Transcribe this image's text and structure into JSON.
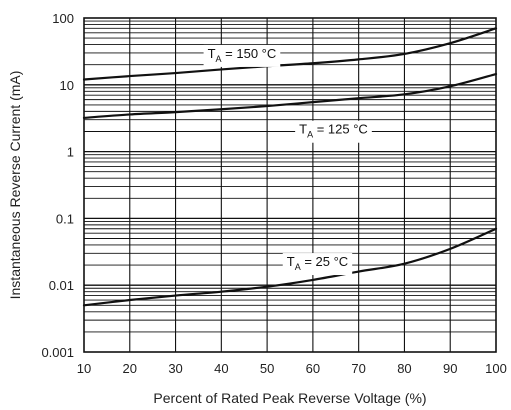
{
  "chart_data": {
    "type": "line",
    "title": "",
    "xlabel": "Percent of Rated Peak Reverse Voltage (%)",
    "ylabel": "Instantaneous Reverse Current (mA)",
    "x_scale": "linear",
    "y_scale": "log",
    "xlim": [
      10,
      100
    ],
    "ylim": [
      0.001,
      100
    ],
    "grid": true,
    "x_ticks": [
      "10",
      "20",
      "30",
      "40",
      "50",
      "60",
      "70",
      "80",
      "90",
      "100"
    ],
    "y_ticks": [
      "0.001",
      "0.01",
      "0.1",
      "1",
      "10",
      "100"
    ],
    "series": [
      {
        "name": "TA = 150 °C",
        "label_main": "T",
        "label_sub": "A",
        "label_rest": " = 150 °C",
        "x": [
          10,
          20,
          30,
          40,
          50,
          60,
          70,
          80,
          90,
          100
        ],
        "y": [
          12,
          13.5,
          15,
          17,
          19,
          21,
          24,
          29,
          42,
          70
        ]
      },
      {
        "name": "TA = 125 °C",
        "label_main": "T",
        "label_sub": "A",
        "label_rest": " = 125 °C",
        "x": [
          10,
          20,
          30,
          40,
          50,
          60,
          70,
          80,
          90,
          100
        ],
        "y": [
          3.2,
          3.6,
          3.9,
          4.3,
          4.8,
          5.5,
          6.3,
          7.2,
          9.5,
          14.5
        ]
      },
      {
        "name": "TA = 25 °C",
        "label_main": "T",
        "label_sub": "A",
        "label_rest": " = 25 °C",
        "x": [
          10,
          20,
          30,
          40,
          50,
          60,
          70,
          80,
          90,
          100
        ],
        "y": [
          0.005,
          0.006,
          0.007,
          0.008,
          0.0095,
          0.012,
          0.016,
          0.021,
          0.035,
          0.07
        ]
      }
    ],
    "colors": {
      "curve": "#111111",
      "grid": "#111111",
      "axis": "#111111",
      "label_bg": "#ffffff"
    }
  }
}
